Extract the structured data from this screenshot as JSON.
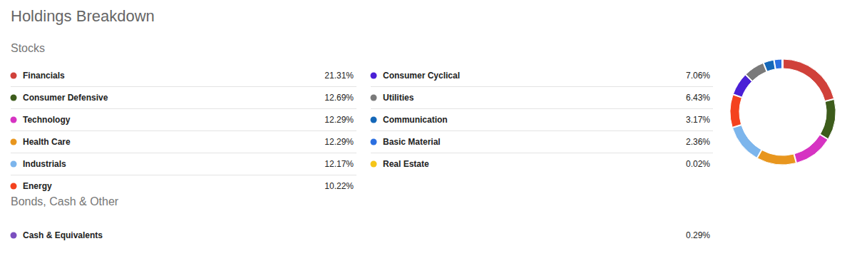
{
  "chart_data": {
    "type": "pie",
    "title": "Holdings Breakdown",
    "subtitle": "Stocks",
    "categories": [
      "Financials",
      "Consumer Defensive",
      "Technology",
      "Health Care",
      "Industrials",
      "Energy",
      "Consumer Cyclical",
      "Utilities",
      "Communication",
      "Basic Material",
      "Real Estate"
    ],
    "values": [
      21.31,
      12.69,
      12.29,
      12.29,
      12.17,
      10.22,
      7.06,
      6.43,
      3.17,
      2.36,
      0.02
    ],
    "value_labels": [
      "21.31%",
      "12.69%",
      "12.29%",
      "12.29%",
      "12.17%",
      "10.22%",
      "7.06%",
      "6.43%",
      "3.17%",
      "2.36%",
      "0.02%"
    ],
    "colors": [
      "#d0413a",
      "#3d5c1b",
      "#d633c2",
      "#e8961e",
      "#7cb5ec",
      "#f4421e",
      "#4a1fd6",
      "#7a7a7a",
      "#1467b8",
      "#2b6fe0",
      "#f5c518"
    ]
  },
  "other_holdings": {
    "heading": "Bonds, Cash & Other",
    "items": [
      {
        "label": "Cash & Equivalents",
        "value": "0.29%",
        "color": "#7b4fbf"
      }
    ]
  }
}
